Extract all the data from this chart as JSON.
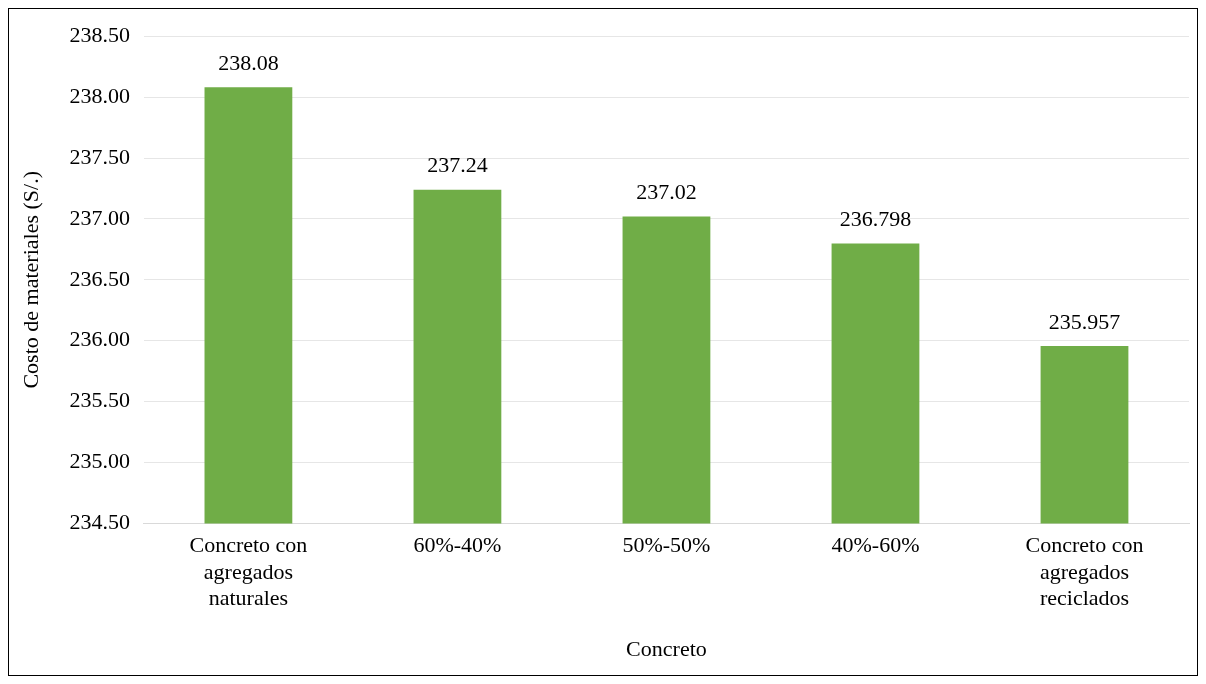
{
  "chart_data": {
    "type": "bar",
    "xlabel": "Concreto",
    "ylabel": "Costo de materiales (S/.)",
    "categories": [
      "Concreto con agregados naturales",
      "60%-40%",
      "50%-50%",
      "40%-60%",
      "Concreto con agregados reciclados"
    ],
    "values": [
      238.08,
      237.24,
      237.02,
      236.798,
      235.957
    ],
    "color": "#70ad47",
    "ylim": [
      234.5,
      238.5
    ],
    "yticks": [
      {
        "value": 234.5,
        "label": "234.50"
      },
      {
        "value": 235,
        "label": "235.00"
      },
      {
        "value": 235.5,
        "label": "235.50"
      },
      {
        "value": 236,
        "label": "236.00"
      },
      {
        "value": 236.5,
        "label": "236.50"
      },
      {
        "value": 237,
        "label": "237.00"
      },
      {
        "value": 237.5,
        "label": "237.50"
      },
      {
        "value": 238,
        "label": "238.00"
      },
      {
        "value": 238.5,
        "label": "238.50"
      }
    ],
    "grid": "y",
    "data_labels": true,
    "legend": false
  }
}
